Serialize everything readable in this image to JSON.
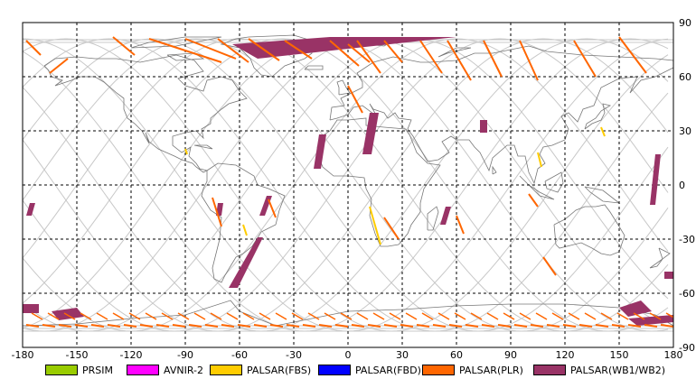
{
  "map": {
    "projection": "equirectangular",
    "lon_range": [
      -180,
      180
    ],
    "lat_range": [
      -90,
      90
    ],
    "lon_ticks": [
      "-180",
      "-150",
      "-120",
      "-90",
      "-60",
      "-30",
      "0",
      "30",
      "60",
      "90",
      "120",
      "150",
      "180"
    ],
    "lat_ticks": [
      "90",
      "60",
      "30",
      "0",
      "-30",
      "-60",
      "-90"
    ],
    "grid": "dashed",
    "background": "#ffffff",
    "coast_color": "#777777",
    "orbit_color": "#c8c8c8"
  },
  "legend": [
    {
      "label": "PRSIM",
      "color": "#99cc00"
    },
    {
      "label": "AVNIR-2",
      "color": "#ff00ff"
    },
    {
      "label": "PALSAR(FBS)",
      "color": "#ffcc00"
    },
    {
      "label": "PALSAR(FBD)",
      "color": "#0000ff"
    },
    {
      "label": "PALSAR(PLR)",
      "color": "#ff6600"
    },
    {
      "label": "PALSAR(WB1/WB2)",
      "color": "#993366"
    }
  ],
  "wb_strips": [
    [
      [
        -64,
        78
      ],
      [
        -10,
        82
      ],
      [
        60,
        82
      ],
      [
        -50,
        70
      ]
    ],
    [
      [
        -176,
        -10
      ],
      [
        -173,
        -10
      ],
      [
        -175,
        -17
      ],
      [
        -178,
        -17
      ]
    ],
    [
      [
        -72,
        -10
      ],
      [
        -69,
        -10
      ],
      [
        -70,
        -17
      ],
      [
        -73,
        -17
      ]
    ],
    [
      [
        -45,
        -6
      ],
      [
        -42,
        -6
      ],
      [
        -46,
        -17
      ],
      [
        -49,
        -17
      ]
    ],
    [
      [
        -50,
        -29
      ],
      [
        -47,
        -29
      ],
      [
        -61,
        -57
      ],
      [
        -66,
        -57
      ]
    ],
    [
      [
        -16,
        28
      ],
      [
        -12,
        28
      ],
      [
        -15,
        9
      ],
      [
        -19,
        9
      ]
    ],
    [
      [
        12,
        40
      ],
      [
        17,
        40
      ],
      [
        13,
        17
      ],
      [
        8,
        17
      ]
    ],
    [
      [
        54,
        -12
      ],
      [
        57,
        -12
      ],
      [
        54,
        -22
      ],
      [
        51,
        -22
      ]
    ],
    [
      [
        73,
        36
      ],
      [
        77,
        36
      ],
      [
        77,
        29
      ],
      [
        73,
        29
      ]
    ],
    [
      [
        170,
        17
      ],
      [
        173,
        17
      ],
      [
        170,
        -11
      ],
      [
        167,
        -11
      ]
    ],
    [
      [
        175,
        -48
      ],
      [
        180,
        -48
      ],
      [
        180,
        -52
      ],
      [
        175,
        -52
      ]
    ],
    [
      [
        -180,
        -66
      ],
      [
        -171,
        -66
      ],
      [
        -171,
        -71
      ],
      [
        -180,
        -71
      ]
    ],
    [
      [
        -164,
        -70
      ],
      [
        -150,
        -68
      ],
      [
        -146,
        -73
      ],
      [
        -160,
        -75
      ]
    ],
    [
      [
        150,
        -68
      ],
      [
        162,
        -64
      ],
      [
        168,
        -70
      ],
      [
        155,
        -73
      ]
    ],
    [
      [
        155,
        -74
      ],
      [
        180,
        -72
      ],
      [
        180,
        -76
      ],
      [
        160,
        -78
      ]
    ]
  ],
  "plr_strips": [
    [
      [
        -165,
        62
      ],
      [
        -155,
        70
      ]
    ],
    [
      -175,
      55
    ],
    [
      [
        -110,
        81
      ],
      [
        -70,
        68
      ]
    ],
    [
      [
        -90,
        81
      ],
      [
        -62,
        70
      ]
    ],
    [
      [
        -72,
        81
      ],
      [
        -55,
        68
      ]
    ],
    [
      [
        -55,
        81
      ],
      [
        -38,
        69
      ]
    ],
    [
      [
        -35,
        80
      ],
      [
        -20,
        70
      ]
    ],
    [
      [
        -10,
        80
      ],
      [
        6,
        66
      ]
    ],
    [
      [
        0,
        78
      ],
      [
        12,
        68
      ]
    ],
    [
      [
        0,
        55
      ],
      [
        8,
        40
      ]
    ],
    [
      [
        5,
        80
      ],
      [
        18,
        62
      ]
    ],
    [
      [
        20,
        80
      ],
      [
        30,
        68
      ]
    ],
    [
      [
        40,
        80
      ],
      [
        52,
        62
      ]
    ],
    [
      [
        55,
        80
      ],
      [
        68,
        58
      ]
    ],
    [
      [
        75,
        80
      ],
      [
        85,
        60
      ]
    ],
    [
      [
        95,
        80
      ],
      [
        105,
        58
      ]
    ],
    [
      [
        125,
        80
      ],
      [
        137,
        60
      ]
    ],
    [
      [
        150,
        82
      ],
      [
        165,
        62
      ]
    ],
    [
      [
        -178,
        80
      ],
      [
        -170,
        72
      ]
    ],
    [
      [
        -130,
        82
      ],
      [
        -118,
        72
      ]
    ],
    [
      [
        -75,
        -7
      ],
      [
        -70,
        -23
      ]
    ],
    [
      [
        -44,
        -8
      ],
      [
        -40,
        -18
      ]
    ],
    [
      [
        20,
        -18
      ],
      [
        28,
        -30
      ]
    ],
    [
      [
        60,
        -17
      ],
      [
        64,
        -27
      ]
    ],
    [
      [
        100,
        -5
      ],
      [
        105,
        -12
      ]
    ],
    [
      [
        108,
        -40
      ],
      [
        115,
        -50
      ]
    ]
  ],
  "fbs_strips": [
    [
      [
        -90,
        20
      ],
      [
        -89,
        17
      ]
    ],
    [
      [
        12,
        -12
      ],
      [
        18,
        -33
      ]
    ],
    [
      [
        105,
        18
      ],
      [
        107,
        10
      ]
    ],
    [
      [
        140,
        32
      ],
      [
        142,
        27
      ]
    ],
    [
      [
        -58,
        -22
      ],
      [
        -56,
        -28
      ]
    ]
  ]
}
